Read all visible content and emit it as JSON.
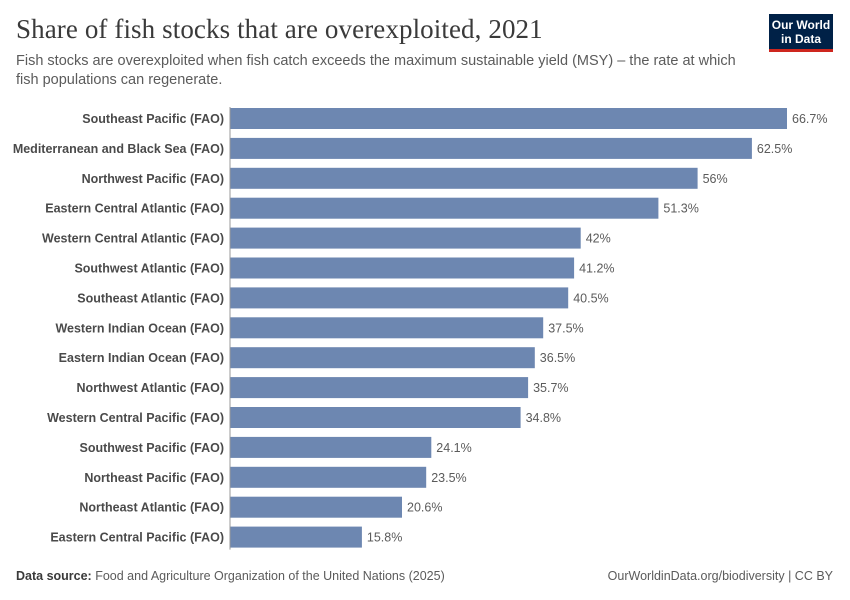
{
  "header": {
    "title": "Share of fish stocks that are overexploited, 2021",
    "subtitle": "Fish stocks are overexploited when fish catch exceeds the maximum sustainable yield (MSY) – the rate at which fish populations can regenerate.",
    "logo_line1": "Our World",
    "logo_line2": "in Data"
  },
  "footer": {
    "source_label": "Data source:",
    "source_text": "Food and Agriculture Organization of the United Nations (2025)",
    "credit": "OurWorldinData.org/biodiversity | CC BY"
  },
  "colors": {
    "bar": "#6d87b1",
    "axis": "#999999"
  },
  "chart_data": {
    "type": "bar",
    "orientation": "horizontal",
    "title": "Share of fish stocks that are overexploited, 2021",
    "categories": [
      "Southeast Pacific (FAO)",
      "Mediterranean and Black Sea (FAO)",
      "Northwest Pacific (FAO)",
      "Eastern Central Atlantic (FAO)",
      "Western Central Atlantic (FAO)",
      "Southwest Atlantic (FAO)",
      "Southeast Atlantic (FAO)",
      "Western Indian Ocean (FAO)",
      "Eastern Indian Ocean (FAO)",
      "Northwest Atlantic (FAO)",
      "Western Central Pacific (FAO)",
      "Southwest Pacific (FAO)",
      "Northeast Pacific (FAO)",
      "Northeast Atlantic (FAO)",
      "Eastern Central Pacific (FAO)"
    ],
    "values": [
      66.7,
      62.5,
      56,
      51.3,
      42,
      41.2,
      40.5,
      37.5,
      36.5,
      35.7,
      34.8,
      24.1,
      23.5,
      20.6,
      15.8
    ],
    "value_labels": [
      "66.7%",
      "62.5%",
      "56%",
      "51.3%",
      "42%",
      "41.2%",
      "40.5%",
      "37.5%",
      "36.5%",
      "35.7%",
      "34.8%",
      "24.1%",
      "23.5%",
      "20.6%",
      "15.8%"
    ],
    "unit": "%",
    "xlim": [
      0,
      66.7
    ],
    "xlabel": "",
    "ylabel": ""
  }
}
